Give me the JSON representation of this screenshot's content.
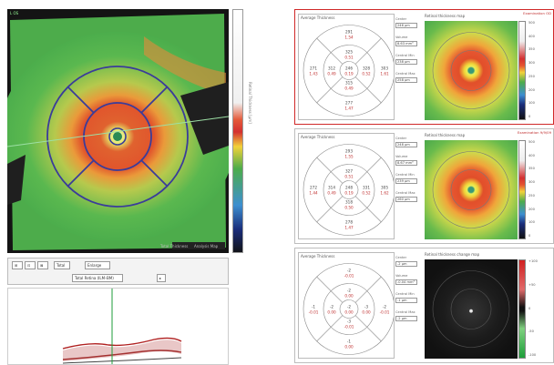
{
  "left_view": {
    "corner_label": "L  OS",
    "bottom_caption": "Total Thickness",
    "bottom_caption_right": "Analysis Map",
    "colorbar_title": "Retinal Thickness [µm]"
  },
  "toolbar": {
    "buttons": [
      "⊞",
      "⊡",
      "⊠",
      "Total",
      "Enlarge"
    ],
    "dropdown_value": "Total Retina (ILM–BM)",
    "small_icon": "▸"
  },
  "bscan": {
    "marker_color": "#1d9e3a"
  },
  "panels": [
    {
      "title": "Average Thickness",
      "flag": "Examination OD",
      "grid_values": {
        "center": "246",
        "center_sub": "0.19",
        "inner_superior": "325",
        "inner_inferior": "315",
        "inner_nasal": "328",
        "inner_temporal": "312",
        "outer_superior": "291",
        "outer_inferior": "277",
        "outer_nasal": "303",
        "outer_temporal": "271",
        "inner_superior_sub": "0.51",
        "inner_inferior_sub": "0.49",
        "inner_nasal_sub": "0.52",
        "inner_temporal_sub": "0.49",
        "outer_superior_sub": "1.54",
        "outer_inferior_sub": "1.47",
        "outer_nasal_sub": "1.61",
        "outer_temporal_sub": "1.43"
      },
      "stats": [
        {
          "label": "Center",
          "value": "246 µm"
        },
        {
          "label": "Volume",
          "value": "8.63 mm³"
        },
        {
          "label": "Central Min",
          "value": "238 µm"
        },
        {
          "label": "Central Max",
          "value": "258 µm"
        }
      ],
      "image_title": "Retinal thickness map",
      "colorbar_ticks": [
        "500",
        "400",
        "350",
        "300",
        "250",
        "200",
        "100",
        "0"
      ],
      "outline": "#d02828"
    },
    {
      "title": "Average Thickness",
      "flag": "Examination 9/9/09",
      "grid_values": {
        "center": "248",
        "center_sub": "0.19",
        "inner_superior": "327",
        "inner_inferior": "318",
        "inner_nasal": "331",
        "inner_temporal": "314",
        "outer_superior": "293",
        "outer_inferior": "278",
        "outer_nasal": "305",
        "outer_temporal": "272",
        "inner_superior_sub": "0.51",
        "inner_inferior_sub": "0.50",
        "inner_nasal_sub": "0.52",
        "inner_temporal_sub": "0.49",
        "outer_superior_sub": "1.55",
        "outer_inferior_sub": "1.47",
        "outer_nasal_sub": "1.62",
        "outer_temporal_sub": "1.44"
      },
      "stats": [
        {
          "label": "Center",
          "value": "248 µm"
        },
        {
          "label": "Volume",
          "value": "8.67 mm³"
        },
        {
          "label": "Central Min",
          "value": "239 µm"
        },
        {
          "label": "Central Max",
          "value": "260 µm"
        }
      ],
      "image_title": "Retinal thickness map",
      "colorbar_ticks": [
        "500",
        "400",
        "350",
        "300",
        "250",
        "200",
        "100",
        "0"
      ],
      "outline": "#bdbdbd"
    },
    {
      "title": "Average Thickness",
      "flag": "",
      "grid_values": {
        "center": "-2",
        "center_sub": "0.00",
        "inner_superior": "-2",
        "inner_inferior": "-3",
        "inner_nasal": "-3",
        "inner_temporal": "-2",
        "outer_superior": "-2",
        "outer_inferior": "-1",
        "outer_nasal": "-2",
        "outer_temporal": "-1",
        "inner_superior_sub": "0.00",
        "inner_inferior_sub": "-0.01",
        "inner_nasal_sub": "0.00",
        "inner_temporal_sub": "0.00",
        "outer_superior_sub": "-0.01",
        "outer_inferior_sub": "0.00",
        "outer_nasal_sub": "-0.01",
        "outer_temporal_sub": "-0.01"
      },
      "stats": [
        {
          "label": "Center",
          "value": "-2 µm"
        },
        {
          "label": "Volume",
          "value": "-0.04 mm³"
        },
        {
          "label": "Central Min",
          "value": "-1 µm"
        },
        {
          "label": "Central Max",
          "value": "-2 µm"
        }
      ],
      "image_title": "Retinal thickness change map",
      "colorbar_ticks": [
        "+100",
        "+50",
        "0",
        "-50",
        "-100"
      ],
      "outline": "#bdbdbd"
    }
  ]
}
